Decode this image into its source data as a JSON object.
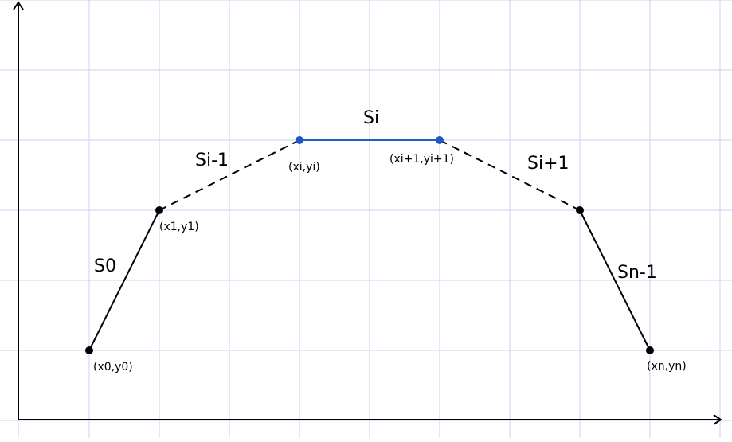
{
  "colors": {
    "grid": "#cfcff4",
    "axis": "#000000",
    "segment": "#000000",
    "highlight": "#1e5fc0",
    "point": "#000000",
    "highlight_point": "#1f57c8"
  },
  "points": [
    {
      "id": "p0",
      "label": "(x0,y0)",
      "highlight": false
    },
    {
      "id": "p1",
      "label": "(x1,y1)",
      "highlight": false
    },
    {
      "id": "pi",
      "label": "(xi,yi)",
      "highlight": true
    },
    {
      "id": "pi1",
      "label": "(xi+1,yi+1)",
      "highlight": true
    },
    {
      "id": "pn1",
      "label": "",
      "highlight": false
    },
    {
      "id": "pn",
      "label": "(xn,yn)",
      "highlight": false
    }
  ],
  "segments": [
    {
      "id": "s0",
      "label": "S0",
      "style": "solid"
    },
    {
      "id": "si-1",
      "label": "Si-1",
      "style": "dashed"
    },
    {
      "id": "si",
      "label": "Si",
      "style": "highlight"
    },
    {
      "id": "si+1",
      "label": "Si+1",
      "style": "dashed"
    },
    {
      "id": "sn-1",
      "label": "Sn-1",
      "style": "solid"
    }
  ]
}
